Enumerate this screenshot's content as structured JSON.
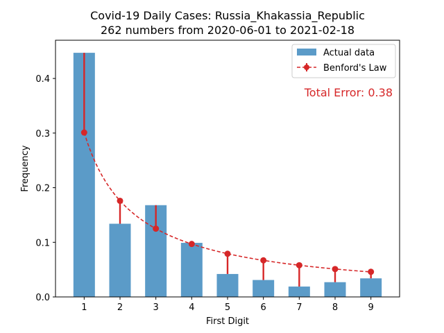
{
  "chart_data": {
    "type": "bar",
    "title_line1": "Covid-19 Daily Cases: Russia_Khakassia_Republic",
    "title_line2": "262 numbers from 2020-06-01 to 2021-02-18",
    "xlabel": "First Digit",
    "ylabel": "Frequency",
    "categories": [
      "1",
      "2",
      "3",
      "4",
      "5",
      "6",
      "7",
      "8",
      "9"
    ],
    "ylim": [
      0,
      0.47
    ],
    "yticks": [
      "0.0",
      "0.1",
      "0.2",
      "0.3",
      "0.4"
    ],
    "series": [
      {
        "name": "Actual data",
        "kind": "bar",
        "color": "#5b9bc8",
        "values": [
          0.447,
          0.134,
          0.168,
          0.099,
          0.042,
          0.031,
          0.019,
          0.027,
          0.034
        ]
      },
      {
        "name": "Benford's Law",
        "kind": "line",
        "color": "#d62728",
        "values": [
          0.301,
          0.176,
          0.125,
          0.097,
          0.079,
          0.067,
          0.058,
          0.051,
          0.046
        ]
      }
    ],
    "annotation": "Total Error: 0.38",
    "legend_position": "top-right",
    "grid": false
  }
}
